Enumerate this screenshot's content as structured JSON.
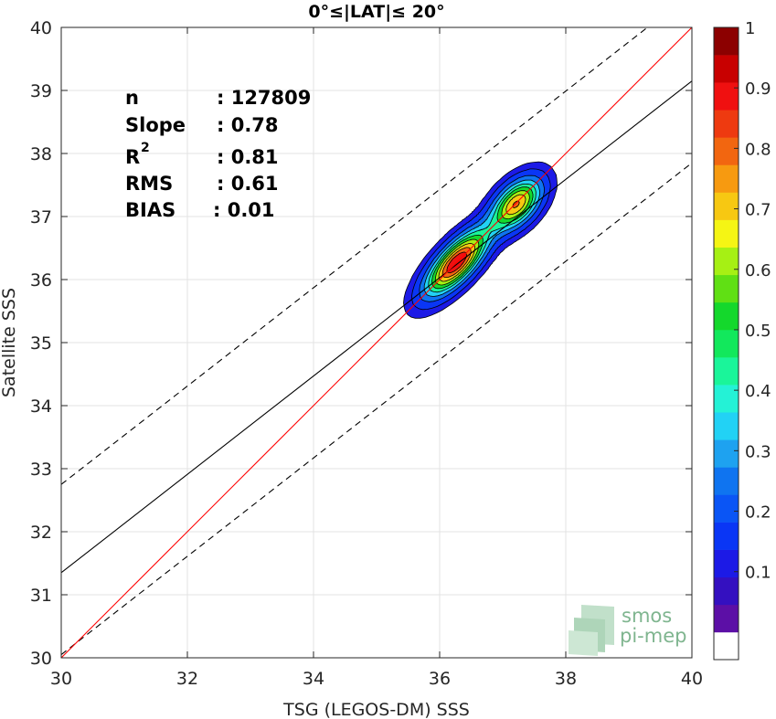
{
  "chart_data": {
    "type": "heatmap",
    "title": "0°≤|LAT|≤ 20°",
    "xlabel": "TSG (LEGOS-DM) SSS",
    "ylabel": "Satellite SSS",
    "xlim": [
      30,
      40
    ],
    "ylim": [
      30,
      40
    ],
    "xticks": [
      "30",
      "32",
      "34",
      "36",
      "38",
      "40"
    ],
    "yticks": [
      "30",
      "31",
      "32",
      "33",
      "34",
      "35",
      "36",
      "37",
      "38",
      "39",
      "40"
    ],
    "grid": true,
    "stats": [
      {
        "label": "n",
        "value": ": 127809"
      },
      {
        "label": "Slope",
        "value": ": 0.78"
      },
      {
        "label": "R",
        "sup": "2",
        "value": ": 0.81"
      },
      {
        "label": "RMS",
        "value": ": 0.61"
      },
      {
        "label": "BIAS",
        "value": ": 0.01"
      }
    ],
    "lines": {
      "identity": {
        "slope": 1,
        "intercept": 0,
        "color": "#ff0000"
      },
      "fit": {
        "slope": 0.78,
        "intercept": 7.95,
        "color": "#000000"
      },
      "fit_upper": {
        "slope": 0.78,
        "intercept": 9.35,
        "style": "dashed"
      },
      "fit_lower": {
        "slope": 0.78,
        "intercept": 6.65,
        "style": "dashed"
      }
    },
    "density_peaks": [
      {
        "x": 36.27,
        "y": 36.27,
        "peak": 1.0,
        "sx": 0.45,
        "sy": 0.35
      },
      {
        "x": 37.22,
        "y": 37.2,
        "peak": 0.8,
        "sx": 0.33,
        "sy": 0.38
      }
    ],
    "density_axis_angle_deg": 47,
    "colorbar": {
      "min": 0,
      "max": 1,
      "tick_labels": [
        "0.1",
        "0.2",
        "0.3",
        "0.4",
        "0.5",
        "0.6",
        "0.7",
        "0.8",
        "0.9",
        "1"
      ],
      "tick_values": [
        0.1,
        0.2,
        0.3,
        0.4,
        0.5,
        0.6,
        0.7,
        0.8,
        0.9,
        1.0
      ],
      "bands": 20,
      "colors": [
        "#ffffff",
        "#5c0fa6",
        "#3410c0",
        "#1c1ae6",
        "#0a36f5",
        "#0a55f5",
        "#0f74f0",
        "#1ea2f0",
        "#22d2f5",
        "#24f2d6",
        "#1af59a",
        "#12e85c",
        "#14d82c",
        "#60e014",
        "#a6f014",
        "#f5f514",
        "#f7c812",
        "#f79a10",
        "#f26610",
        "#ee3a10",
        "#f01010",
        "#c80000",
        "#8c0000"
      ]
    },
    "contour_levels": [
      0.1,
      0.2,
      0.3,
      0.4,
      0.5,
      0.6,
      0.7,
      0.8,
      0.9
    ],
    "logo": {
      "line1": "smos",
      "line2": "pi-mep"
    }
  }
}
